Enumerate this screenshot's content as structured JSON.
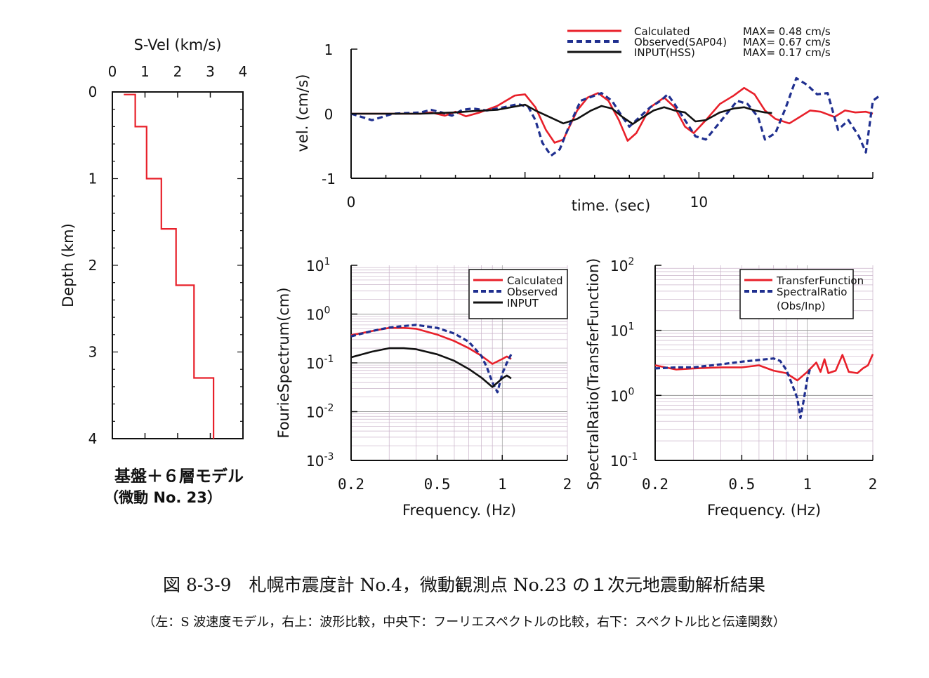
{
  "caption": {
    "title": "図 8-3-9　札幌市震度計 No.4，微動観測点 No.23 の１次元地震動解析結果",
    "subtitle": "（左：S 波速度モデル，右上：波形比較，中央下：フーリエスペクトルの比較，右下：スペクトル比と伝達関数）"
  },
  "colors": {
    "calculated": "#e8202a",
    "observed": "#1f2f8f",
    "input": "#111111",
    "grid": "#c9b3c9"
  },
  "chart_data": [
    {
      "type": "line",
      "id": "velocity-profile",
      "title": "",
      "xlabel": "S-Vel (km/s)",
      "ylabel": "Depth (km)",
      "xlim": [
        0,
        4
      ],
      "ylim": [
        4,
        0
      ],
      "x_ticks": [
        "0",
        "1",
        "2",
        "3",
        "4"
      ],
      "y_ticks": [
        "0",
        "1",
        "2",
        "3",
        "4"
      ],
      "model_label": "基盤＋６層モデル",
      "model_sublabel": "（微動 No. 23）",
      "series": [
        {
          "style": "step",
          "color": "#e8202a",
          "points": [
            [
              0.35,
              0.03
            ],
            [
              0.7,
              0.03
            ],
            [
              0.7,
              0.4
            ],
            [
              1.05,
              0.4
            ],
            [
              1.05,
              1.0
            ],
            [
              1.5,
              1.0
            ],
            [
              1.5,
              1.58
            ],
            [
              1.95,
              1.58
            ],
            [
              1.95,
              2.23
            ],
            [
              2.5,
              2.23
            ],
            [
              2.5,
              3.3
            ],
            [
              3.1,
              3.3
            ],
            [
              3.1,
              4.0
            ]
          ]
        }
      ]
    },
    {
      "type": "line",
      "id": "waveform-comparison",
      "xlabel": "time. (sec)",
      "ylabel": "vel. (cm/s)",
      "xlim": [
        0,
        15
      ],
      "ylim": [
        -1,
        1
      ],
      "x_ticks": [
        "0",
        "10"
      ],
      "y_ticks": [
        "1",
        "0",
        "-1"
      ],
      "series": [
        {
          "name": "Calculated",
          "max_label": "MAX= 0.48 cm/s",
          "color": "#e8202a",
          "dash": "",
          "points": [
            [
              0,
              0
            ],
            [
              1,
              0
            ],
            [
              2,
              0
            ],
            [
              2.3,
              0.02
            ],
            [
              2.7,
              -0.03
            ],
            [
              3,
              0.03
            ],
            [
              3.3,
              -0.04
            ],
            [
              3.7,
              0.02
            ],
            [
              4.2,
              0.12
            ],
            [
              4.7,
              0.28
            ],
            [
              5,
              0.3
            ],
            [
              5.3,
              0.1
            ],
            [
              5.6,
              -0.25
            ],
            [
              5.85,
              -0.45
            ],
            [
              6.1,
              -0.4
            ],
            [
              6.5,
              0.05
            ],
            [
              6.8,
              0.25
            ],
            [
              7.1,
              0.32
            ],
            [
              7.4,
              0.2
            ],
            [
              7.7,
              -0.1
            ],
            [
              7.95,
              -0.42
            ],
            [
              8.2,
              -0.3
            ],
            [
              8.6,
              0.1
            ],
            [
              9,
              0.25
            ],
            [
              9.3,
              0.1
            ],
            [
              9.6,
              -0.2
            ],
            [
              9.85,
              -0.3
            ],
            [
              10.2,
              -0.1
            ],
            [
              10.6,
              0.15
            ],
            [
              11,
              0.28
            ],
            [
              11.3,
              0.4
            ],
            [
              11.6,
              0.3
            ],
            [
              11.9,
              0.05
            ],
            [
              12.2,
              -0.08
            ],
            [
              12.6,
              -0.15
            ],
            [
              12.9,
              -0.05
            ],
            [
              13.2,
              0.05
            ],
            [
              13.5,
              0.03
            ],
            [
              13.9,
              -0.05
            ],
            [
              14.2,
              0.05
            ],
            [
              14.5,
              0.02
            ],
            [
              14.8,
              0.03
            ],
            [
              15,
              0
            ]
          ]
        },
        {
          "name": "Observed(SAP04)",
          "max_label": "MAX= 0.67 cm/s",
          "color": "#1f2f8f",
          "dash": "8 5",
          "points": [
            [
              0,
              0
            ],
            [
              0.3,
              -0.05
            ],
            [
              0.6,
              -0.1
            ],
            [
              0.9,
              -0.05
            ],
            [
              1.2,
              0
            ],
            [
              2,
              0.02
            ],
            [
              2.3,
              0.06
            ],
            [
              2.6,
              0.02
            ],
            [
              2.9,
              -0.03
            ],
            [
              3.2,
              0.06
            ],
            [
              3.5,
              0.08
            ],
            [
              3.9,
              0.05
            ],
            [
              4.4,
              0.1
            ],
            [
              4.8,
              0.15
            ],
            [
              5.1,
              0.1
            ],
            [
              5.3,
              -0.1
            ],
            [
              5.5,
              -0.45
            ],
            [
              5.75,
              -0.65
            ],
            [
              6,
              -0.55
            ],
            [
              6.3,
              -0.15
            ],
            [
              6.6,
              0.2
            ],
            [
              6.9,
              0.26
            ],
            [
              7.2,
              0.32
            ],
            [
              7.5,
              0.2
            ],
            [
              7.8,
              -0.05
            ],
            [
              8,
              -0.2
            ],
            [
              8.3,
              -0.05
            ],
            [
              8.6,
              0.1
            ],
            [
              8.9,
              0.2
            ],
            [
              9.1,
              0.3
            ],
            [
              9.3,
              0.15
            ],
            [
              9.6,
              -0.1
            ],
            [
              9.9,
              -0.35
            ],
            [
              10.2,
              -0.4
            ],
            [
              10.5,
              -0.2
            ],
            [
              10.8,
              0
            ],
            [
              11.1,
              0.2
            ],
            [
              11.4,
              0.15
            ],
            [
              11.7,
              -0.05
            ],
            [
              11.9,
              -0.4
            ],
            [
              12.2,
              -0.3
            ],
            [
              12.5,
              0.1
            ],
            [
              12.8,
              0.55
            ],
            [
              13.1,
              0.45
            ],
            [
              13.4,
              0.3
            ],
            [
              13.7,
              0.32
            ],
            [
              14,
              -0.25
            ],
            [
              14.3,
              -0.1
            ],
            [
              14.6,
              -0.35
            ],
            [
              14.8,
              -0.6
            ],
            [
              15,
              0.2
            ],
            [
              15.2,
              0.28
            ]
          ]
        },
        {
          "name": "INPUT(HSS)",
          "max_label": "MAX= 0.17 cm/s",
          "color": "#111111",
          "dash": "",
          "points": [
            [
              0,
              0
            ],
            [
              2,
              0
            ],
            [
              3,
              0.02
            ],
            [
              3.5,
              0.04
            ],
            [
              4.2,
              0.06
            ],
            [
              4.8,
              0.12
            ],
            [
              5,
              0.14
            ],
            [
              5.3,
              0.05
            ],
            [
              5.7,
              -0.05
            ],
            [
              6.1,
              -0.15
            ],
            [
              6.5,
              -0.08
            ],
            [
              6.9,
              0.05
            ],
            [
              7.2,
              0.12
            ],
            [
              7.5,
              0.08
            ],
            [
              7.8,
              -0.05
            ],
            [
              8.1,
              -0.16
            ],
            [
              8.4,
              -0.05
            ],
            [
              8.7,
              0.05
            ],
            [
              9,
              0.1
            ],
            [
              9.3,
              0.05
            ],
            [
              9.6,
              0.02
            ],
            [
              9.9,
              -0.12
            ],
            [
              10.2,
              -0.1
            ],
            [
              10.6,
              0.02
            ],
            [
              11,
              0.08
            ],
            [
              11.3,
              0.1
            ],
            [
              11.6,
              0.05
            ],
            [
              11.9,
              0.02
            ],
            [
              12.1,
              0.01
            ]
          ]
        }
      ]
    },
    {
      "type": "line",
      "id": "fourier-spectrum",
      "xlabel": "Frequency. (Hz)",
      "ylabel": "FourieSpectrum(cm)",
      "xscale": "log",
      "yscale": "log",
      "xlim": [
        0.2,
        2
      ],
      "ylim": [
        0.001,
        10
      ],
      "x_ticks": [
        "0.2",
        "0.5",
        "1",
        "2"
      ],
      "y_ticks": [
        {
          "base": "10",
          "exp": "1"
        },
        {
          "base": "10",
          "exp": "0"
        },
        {
          "base": "10",
          "exp": "-1"
        },
        {
          "base": "10",
          "exp": "-2"
        },
        {
          "base": "10",
          "exp": "-3"
        }
      ],
      "series": [
        {
          "name": "Calculated",
          "color": "#e8202a",
          "dash": "",
          "points": [
            [
              0.2,
              0.37
            ],
            [
              0.25,
              0.45
            ],
            [
              0.3,
              0.52
            ],
            [
              0.35,
              0.52
            ],
            [
              0.4,
              0.5
            ],
            [
              0.5,
              0.38
            ],
            [
              0.6,
              0.28
            ],
            [
              0.7,
              0.2
            ],
            [
              0.8,
              0.14
            ],
            [
              0.9,
              0.095
            ],
            [
              1.0,
              0.12
            ],
            [
              1.05,
              0.135
            ],
            [
              1.1,
              0.12
            ]
          ]
        },
        {
          "name": "Observed",
          "color": "#1f2f8f",
          "dash": "7 4",
          "points": [
            [
              0.2,
              0.35
            ],
            [
              0.25,
              0.45
            ],
            [
              0.3,
              0.53
            ],
            [
              0.35,
              0.57
            ],
            [
              0.4,
              0.6
            ],
            [
              0.5,
              0.52
            ],
            [
              0.6,
              0.4
            ],
            [
              0.7,
              0.27
            ],
            [
              0.8,
              0.14
            ],
            [
              0.85,
              0.08
            ],
            [
              0.9,
              0.04
            ],
            [
              0.95,
              0.025
            ],
            [
              1.0,
              0.06
            ],
            [
              1.05,
              0.1
            ],
            [
              1.1,
              0.15
            ]
          ]
        },
        {
          "name": "INPUT",
          "color": "#111111",
          "dash": "",
          "points": [
            [
              0.2,
              0.13
            ],
            [
              0.25,
              0.17
            ],
            [
              0.3,
              0.2
            ],
            [
              0.35,
              0.2
            ],
            [
              0.4,
              0.19
            ],
            [
              0.5,
              0.15
            ],
            [
              0.6,
              0.11
            ],
            [
              0.7,
              0.075
            ],
            [
              0.8,
              0.05
            ],
            [
              0.9,
              0.032
            ],
            [
              1.0,
              0.048
            ],
            [
              1.05,
              0.055
            ],
            [
              1.1,
              0.048
            ]
          ]
        }
      ]
    },
    {
      "type": "line",
      "id": "spectral-ratio",
      "xlabel": "Frequency. (Hz)",
      "ylabel": "SpectralRatio(TransferFunction)",
      "xscale": "log",
      "yscale": "log",
      "xlim": [
        0.2,
        2
      ],
      "ylim": [
        0.1,
        100
      ],
      "x_ticks": [
        "0.2",
        "0.5",
        "1",
        "2"
      ],
      "y_ticks": [
        {
          "base": "10",
          "exp": "2"
        },
        {
          "base": "10",
          "exp": "1"
        },
        {
          "base": "10",
          "exp": "0"
        },
        {
          "base": "10",
          "exp": "-1"
        }
      ],
      "series": [
        {
          "name": "TransferFunction",
          "color": "#e8202a",
          "dash": "",
          "points": [
            [
              0.2,
              2.9
            ],
            [
              0.25,
              2.5
            ],
            [
              0.3,
              2.6
            ],
            [
              0.4,
              2.7
            ],
            [
              0.5,
              2.7
            ],
            [
              0.6,
              2.9
            ],
            [
              0.7,
              2.4
            ],
            [
              0.8,
              2.2
            ],
            [
              0.9,
              1.7
            ],
            [
              1.0,
              2.3
            ],
            [
              1.1,
              3.2
            ],
            [
              1.15,
              2.3
            ],
            [
              1.2,
              3.6
            ],
            [
              1.25,
              2.2
            ],
            [
              1.35,
              2.4
            ],
            [
              1.45,
              4.2
            ],
            [
              1.55,
              2.3
            ],
            [
              1.7,
              2.2
            ],
            [
              1.8,
              2.6
            ],
            [
              1.9,
              2.9
            ],
            [
              2.0,
              4.3
            ]
          ]
        },
        {
          "name": "SpectralRatio (Obs/Inp)",
          "color": "#1f2f8f",
          "dash": "7 4",
          "points": [
            [
              0.2,
              2.6
            ],
            [
              0.25,
              2.7
            ],
            [
              0.3,
              2.7
            ],
            [
              0.4,
              3.0
            ],
            [
              0.5,
              3.3
            ],
            [
              0.6,
              3.5
            ],
            [
              0.7,
              3.7
            ],
            [
              0.75,
              3.4
            ],
            [
              0.8,
              2.5
            ],
            [
              0.85,
              1.5
            ],
            [
              0.9,
              0.9
            ],
            [
              0.93,
              0.45
            ],
            [
              0.96,
              0.8
            ],
            [
              1.0,
              1.8
            ],
            [
              1.03,
              2.6
            ]
          ]
        }
      ]
    }
  ]
}
